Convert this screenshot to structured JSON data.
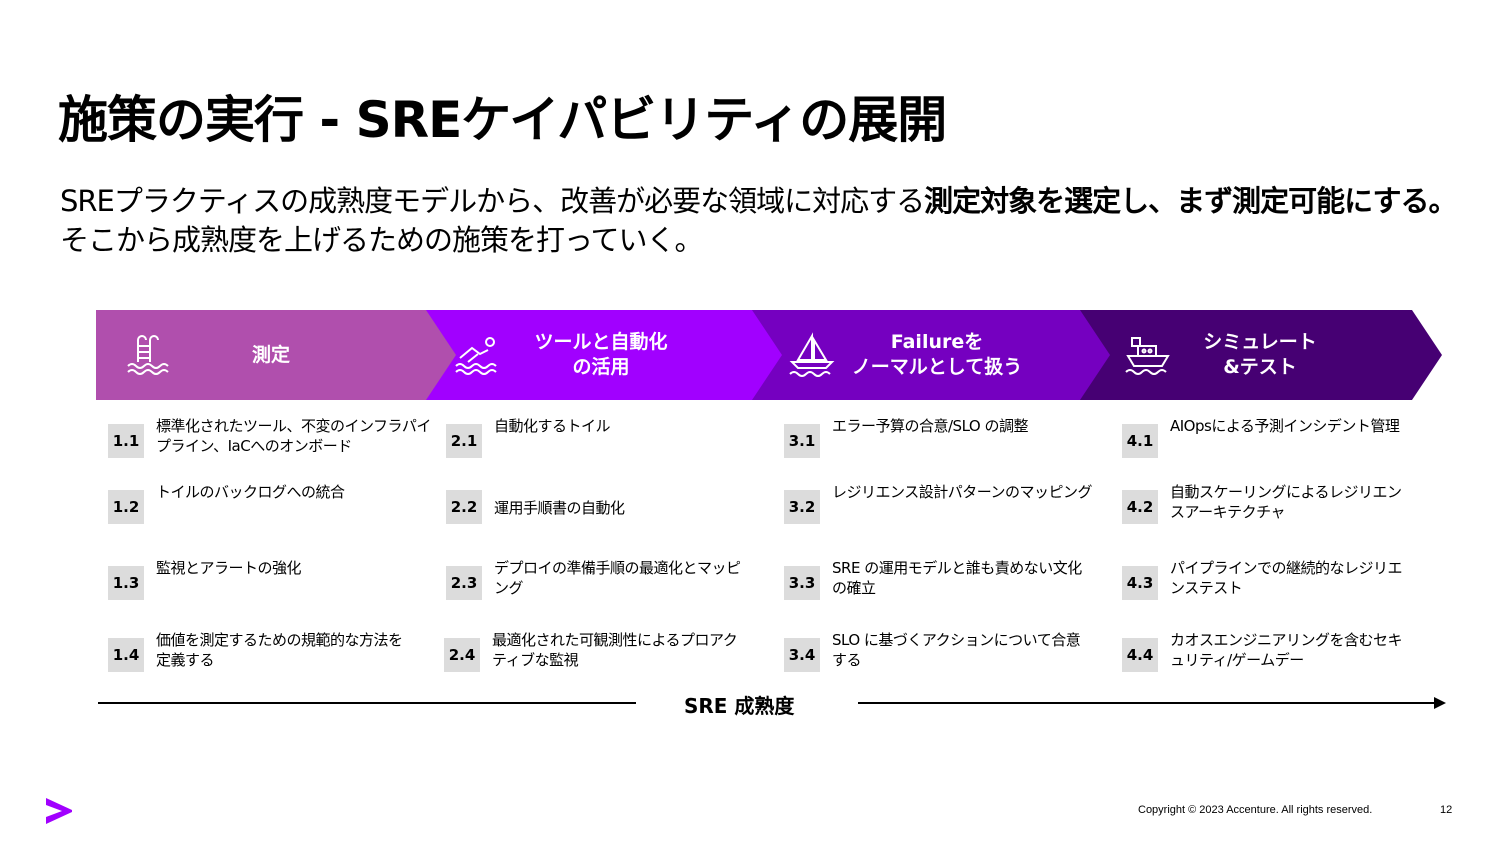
{
  "title": "施策の実行 - SREケイパビリティの展開",
  "subtitle": {
    "part1": "SREプラクティスの成熟度モデルから、改善が必要な領域に対応する",
    "bold": "測定対象を選定し、まず測定可能にする。",
    "part2": "そこから成熟度を上げるための施策を打っていく。"
  },
  "stages": [
    {
      "line1": "測定",
      "line2": "",
      "icon": "pool-ladder-icon",
      "color": "#b04fad"
    },
    {
      "line1": "ツールと自動化",
      "line2": "の活用",
      "icon": "swimmer-icon",
      "color": "#a100ff"
    },
    {
      "line1": "Failureを",
      "line2": "ノーマルとして扱う",
      "icon": "sailboat-icon",
      "color": "#7500c0"
    },
    {
      "line1": "シミュレート",
      "line2": "&テスト",
      "icon": "ship-icon",
      "color": "#460073"
    }
  ],
  "items": [
    [
      {
        "num": "1.1",
        "text": "標準化されたツール、不変のインフラパイプライン、IaCへのオンボード"
      },
      {
        "num": "1.2",
        "text": "トイルのバックログへの統合"
      },
      {
        "num": "1.3",
        "text": "監視とアラートの強化"
      },
      {
        "num": "1.4",
        "text": "価値を測定するための規範的な方法を定義する"
      }
    ],
    [
      {
        "num": "2.1",
        "text": "自動化するトイル"
      },
      {
        "num": "2.2",
        "text": "運用手順書の自動化"
      },
      {
        "num": "2.3",
        "text": "デプロイの準備手順の最適化とマッピング"
      },
      {
        "num": "2.4",
        "text": "最適化された可観測性によるプロアクティブな監視"
      }
    ],
    [
      {
        "num": "3.1",
        "text": "エラー予算の合意/SLO の調整"
      },
      {
        "num": "3.2",
        "text": "レジリエンス設計パターンのマッピング"
      },
      {
        "num": "3.3",
        "text": "SRE の運用モデルと誰も責めない文化の確立"
      },
      {
        "num": "3.4",
        "text": "SLO に基づくアクションについて合意する"
      }
    ],
    [
      {
        "num": "4.1",
        "text": "AIOpsによる予測インシデント管理"
      },
      {
        "num": "4.2",
        "text": "自動スケーリングによるレジリエンスアーキテクチャ"
      },
      {
        "num": "4.3",
        "text": "パイプラインでの継続的なレジリエンステスト"
      },
      {
        "num": "4.4",
        "text": "カオスエンジニアリングを含むセキュリティ/ゲームデー"
      }
    ]
  ],
  "axis_label": "SRE 成熟度",
  "footer": {
    "copyright": "Copyright © 2023 Accenture. All rights reserved.",
    "page": "12"
  },
  "brand_color": "#a100ff"
}
